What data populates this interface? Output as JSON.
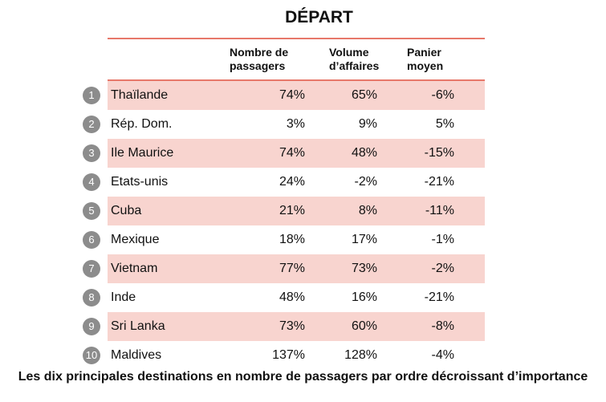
{
  "chart_data": {
    "type": "table",
    "title": "DÉPART",
    "columns": [
      "Nombre de\npassagers",
      "Volume\nd’affaires",
      "Panier\nmoyen"
    ],
    "rows": [
      {
        "rank": "1",
        "name": "Thaïlande",
        "values": [
          "74%",
          "65%",
          "-6%"
        ]
      },
      {
        "rank": "2",
        "name": "Rép. Dom.",
        "values": [
          "3%",
          "9%",
          "5%"
        ]
      },
      {
        "rank": "3",
        "name": "Ile Maurice",
        "values": [
          "74%",
          "48%",
          "-15%"
        ]
      },
      {
        "rank": "4",
        "name": "Etats-unis",
        "values": [
          "24%",
          "-2%",
          "-21%"
        ]
      },
      {
        "rank": "5",
        "name": "Cuba",
        "values": [
          "21%",
          "8%",
          "-11%"
        ]
      },
      {
        "rank": "6",
        "name": "Mexique",
        "values": [
          "18%",
          "17%",
          "-1%"
        ]
      },
      {
        "rank": "7",
        "name": "Vietnam",
        "values": [
          "77%",
          "73%",
          "-2%"
        ]
      },
      {
        "rank": "8",
        "name": "Inde",
        "values": [
          "48%",
          "16%",
          "-21%"
        ]
      },
      {
        "rank": "9",
        "name": "Sri Lanka",
        "values": [
          "73%",
          "60%",
          "-8%"
        ]
      },
      {
        "rank": "10",
        "name": "Maldives",
        "values": [
          "137%",
          "128%",
          "-4%"
        ]
      }
    ],
    "caption": "Les dix principales destinations en nombre de passagers par ordre décroissant d’importance"
  },
  "colors": {
    "rule": "#e7786a",
    "row_shade": "#f8d4cf",
    "badge": "#8c8c8c"
  }
}
